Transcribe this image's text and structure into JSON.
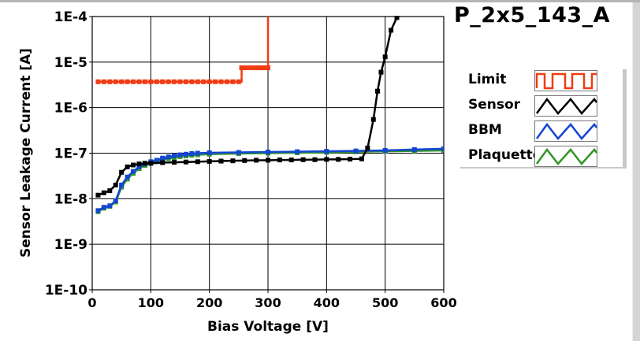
{
  "chart_data": {
    "type": "line",
    "title": "P_2x5_143_A",
    "xlabel": "Bias Voltage [V]",
    "ylabel": "Sensor Leakage Current [A]",
    "xlim": [
      0,
      600
    ],
    "ylim": [
      1e-10,
      0.0001
    ],
    "yscale": "log",
    "grid": true,
    "legend_position": "right",
    "xticks": [
      "0",
      "100",
      "200",
      "300",
      "400",
      "500",
      "600"
    ],
    "yticks": [
      "1E-4",
      "1E-5",
      "1E-6",
      "1E-7",
      "1E-8",
      "1E-9",
      "1E-10"
    ],
    "series": [
      {
        "name": "Limit",
        "color": "#f03c14",
        "x": [
          10,
          20,
          30,
          40,
          50,
          60,
          70,
          80,
          90,
          100,
          110,
          120,
          130,
          140,
          150,
          160,
          170,
          180,
          190,
          200,
          210,
          220,
          230,
          240,
          250,
          255,
          262,
          270,
          278,
          285,
          292,
          300,
          300
        ],
        "y": [
          3.7e-06,
          3.7e-06,
          3.7e-06,
          3.7e-06,
          3.7e-06,
          3.7e-06,
          3.7e-06,
          3.7e-06,
          3.7e-06,
          3.7e-06,
          3.7e-06,
          3.7e-06,
          3.7e-06,
          3.7e-06,
          3.7e-06,
          3.7e-06,
          3.7e-06,
          3.7e-06,
          3.7e-06,
          3.7e-06,
          3.7e-06,
          3.7e-06,
          3.7e-06,
          3.7e-06,
          3.7e-06,
          7.5e-06,
          7.5e-06,
          7.5e-06,
          7.5e-06,
          7.5e-06,
          7.5e-06,
          7.5e-06,
          0.0001
        ]
      },
      {
        "name": "Sensor",
        "color": "#000000",
        "x": [
          10,
          20,
          30,
          40,
          50,
          60,
          70,
          80,
          90,
          100,
          120,
          140,
          160,
          180,
          200,
          220,
          240,
          260,
          280,
          300,
          320,
          340,
          360,
          380,
          400,
          420,
          440,
          460,
          470,
          480,
          487,
          493,
          500,
          510,
          520
        ],
        "y": [
          1.2e-08,
          1.35e-08,
          1.5e-08,
          2e-08,
          3.8e-08,
          5e-08,
          5.5e-08,
          5.8e-08,
          6e-08,
          6e-08,
          6.2e-08,
          6.3e-08,
          6.4e-08,
          6.5e-08,
          6.6e-08,
          6.7e-08,
          6.8e-08,
          6.9e-08,
          7e-08,
          7e-08,
          7.1e-08,
          7.1e-08,
          7.2e-08,
          7.2e-08,
          7.3e-08,
          7.3e-08,
          7.4e-08,
          7.5e-08,
          1.3e-07,
          5.5e-07,
          2.3e-06,
          6e-06,
          1.3e-05,
          5e-05,
          9.5e-05
        ]
      },
      {
        "name": "BBM",
        "color": "#1446d2",
        "x": [
          10,
          20,
          30,
          40,
          50,
          60,
          70,
          80,
          90,
          100,
          110,
          120,
          130,
          140,
          150,
          160,
          170,
          180,
          200,
          250,
          300,
          350,
          400,
          450,
          500,
          550,
          600
        ],
        "y": [
          5.5e-09,
          6.5e-09,
          7e-09,
          9e-09,
          2e-08,
          3e-08,
          4e-08,
          5e-08,
          5.8e-08,
          6.5e-08,
          7e-08,
          7.8e-08,
          8.3e-08,
          8.8e-08,
          9.2e-08,
          9.5e-08,
          9.8e-08,
          1e-07,
          1.02e-07,
          1.04e-07,
          1.06e-07,
          1.08e-07,
          1.1e-07,
          1.12e-07,
          1.15e-07,
          1.2e-07,
          1.25e-07
        ]
      },
      {
        "name": "Plaquette",
        "color": "#329628",
        "x": [
          10,
          20,
          30,
          40,
          50,
          60,
          70,
          80,
          90,
          100,
          110,
          120,
          130,
          140,
          150,
          160,
          170,
          180,
          200,
          250,
          300,
          350,
          400,
          450,
          500,
          550,
          600
        ],
        "y": [
          5.2e-09,
          6.2e-09,
          6.8e-09,
          8.5e-09,
          1.8e-08,
          2.7e-08,
          3.6e-08,
          4.6e-08,
          5.4e-08,
          6e-08,
          6.5e-08,
          7.1e-08,
          7.6e-08,
          8e-08,
          8.4e-08,
          8.7e-08,
          9e-08,
          9.2e-08,
          9.5e-08,
          9.8e-08,
          1e-07,
          1.02e-07,
          1.04e-07,
          1.07e-07,
          1.1e-07,
          1.12e-07,
          1.15e-07
        ]
      }
    ]
  }
}
